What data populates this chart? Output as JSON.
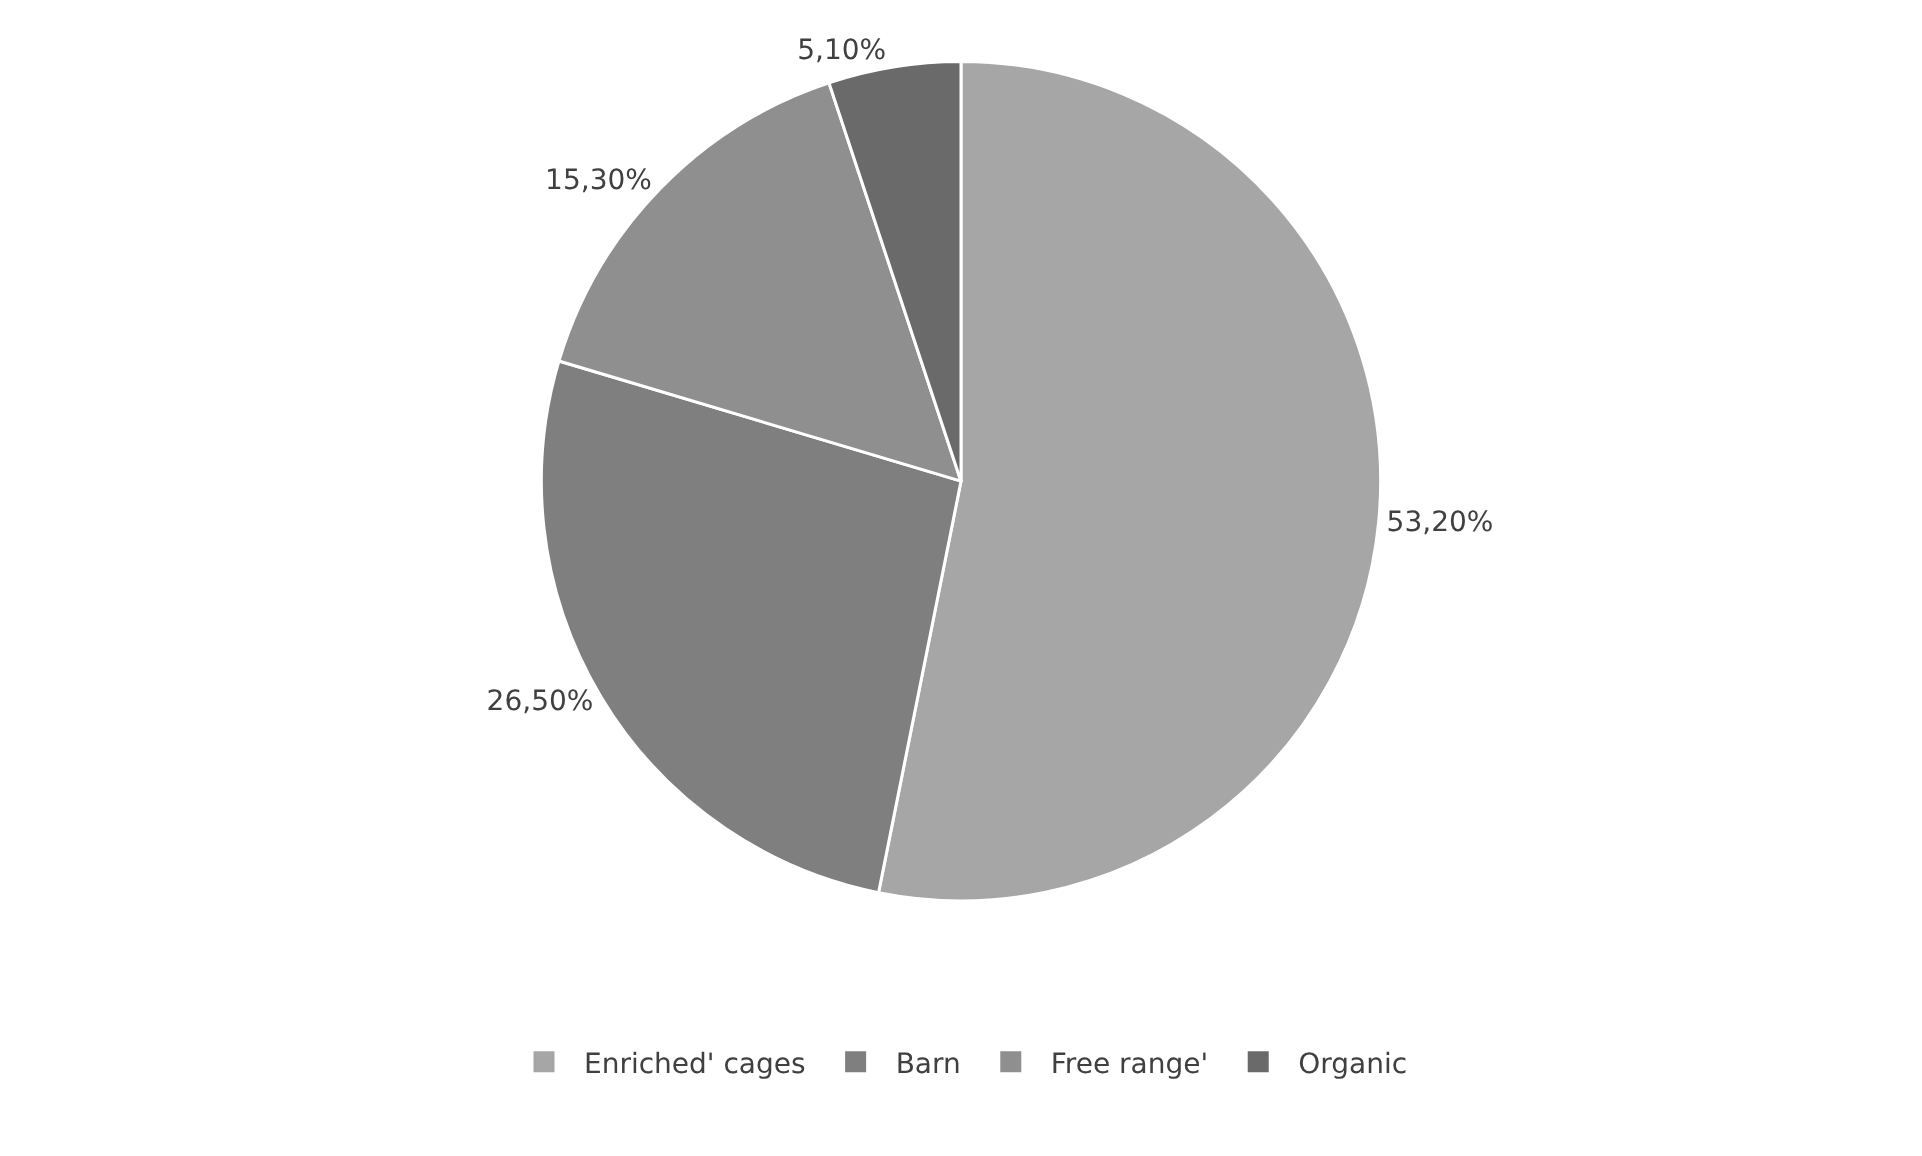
{
  "chart_data": {
    "type": "pie",
    "categories": [
      "Enriched' cages",
      "Barn",
      "Free range'",
      "Organic"
    ],
    "values": [
      53.2,
      26.5,
      15.3,
      5.1
    ],
    "value_labels": [
      "53,20%",
      "26,50%",
      "15,30%",
      "5,10%"
    ],
    "colors": [
      "#a6a6a6",
      "#7f7f7f",
      "#8f8f8f",
      "#6a6a6a"
    ],
    "legend": "bottom"
  }
}
